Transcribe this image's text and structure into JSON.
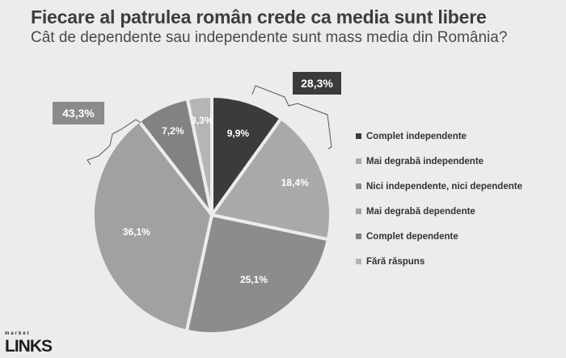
{
  "header": {
    "title": "Fiecare al patrulea român crede ca media sunt libere",
    "subtitle": "Cât de dependente sau independente sunt mass media din România?"
  },
  "callouts": {
    "left": "43,3%",
    "right": "28,3%"
  },
  "logo": {
    "small": "market",
    "main": "LINKS"
  },
  "colors": {
    "background": "#ececec",
    "complet_independente": "#3b3b3b",
    "mai_degraba_independente": "#a9a9a9",
    "nici": "#8c8c8c",
    "mai_degraba_dependente": "#a1a1a1",
    "complet_dependente": "#828282",
    "fara_raspuns": "#b5b5b5"
  },
  "chart_data": {
    "type": "pie",
    "title": "Fiecare al patrulea român crede ca media sunt libere",
    "subtitle": "Cât de dependente sau independente sunt mass media din România?",
    "legend_position": "right",
    "start_angle": "top",
    "direction": "clockwise",
    "categories": [
      "Complet independente",
      "Mai degrabă independente",
      "Nici independente, nici dependente",
      "Mai degrabă dependente",
      "Complet dependente",
      "Fără răspuns"
    ],
    "values": [
      9.9,
      18.4,
      25.1,
      36.1,
      7.2,
      3.3
    ],
    "labels": [
      "9,9%",
      "18,4%",
      "25,1%",
      "36,1%",
      "7,2%",
      "3,3%"
    ],
    "colors": [
      "#3b3b3b",
      "#a9a9a9",
      "#8c8c8c",
      "#a1a1a1",
      "#828282",
      "#b5b5b5"
    ],
    "label_colors": [
      "#ffffff",
      "#ffffff",
      "#ffffff",
      "#ffffff",
      "#ffffff",
      "#ffffff"
    ],
    "annotations": [
      {
        "text": "43,3%",
        "spans": [
          "Mai degrabă dependente",
          "Complet dependente"
        ]
      },
      {
        "text": "28,3%",
        "spans": [
          "Complet independente",
          "Mai degrabă independente"
        ]
      }
    ]
  }
}
